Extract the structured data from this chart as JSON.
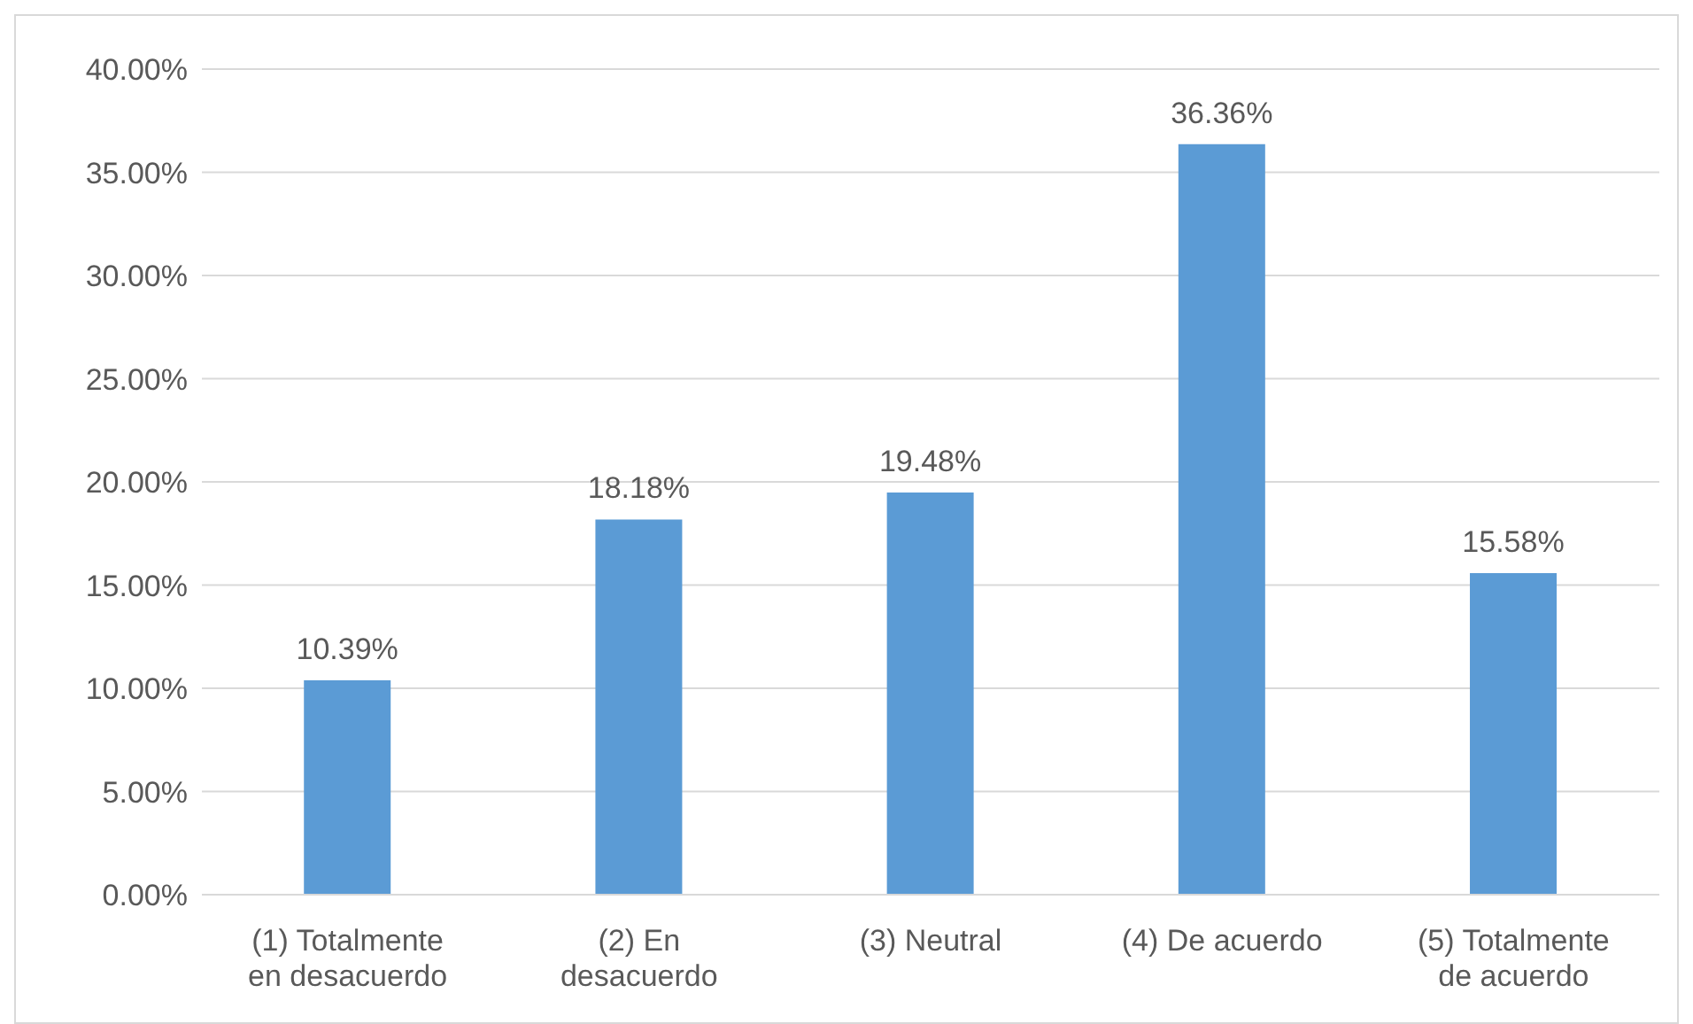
{
  "chart_data": {
    "type": "bar",
    "categories": [
      "(1) Totalmente en desacuerdo",
      "(2) En desacuerdo",
      "(3) Neutral",
      "(4) De acuerdo",
      "(5) Totalmente de acuerdo"
    ],
    "values": [
      10.39,
      18.18,
      19.48,
      36.36,
      15.58
    ],
    "value_labels": [
      "10.39%",
      "18.18%",
      "19.48%",
      "36.36%",
      "15.58%"
    ],
    "color": "#5b9bd5",
    "ylim": [
      0,
      40
    ],
    "yticks": [
      {
        "value": 0,
        "label": "0.00%"
      },
      {
        "value": 5,
        "label": "5.00%"
      },
      {
        "value": 10,
        "label": "10.00%"
      },
      {
        "value": 15,
        "label": "15.00%"
      },
      {
        "value": 20,
        "label": "20.00%"
      },
      {
        "value": 25,
        "label": "25.00%"
      },
      {
        "value": 30,
        "label": "30.00%"
      },
      {
        "value": 35,
        "label": "35.00%"
      },
      {
        "value": 40,
        "label": "40.00%"
      }
    ],
    "grid": "y",
    "legend": false
  }
}
